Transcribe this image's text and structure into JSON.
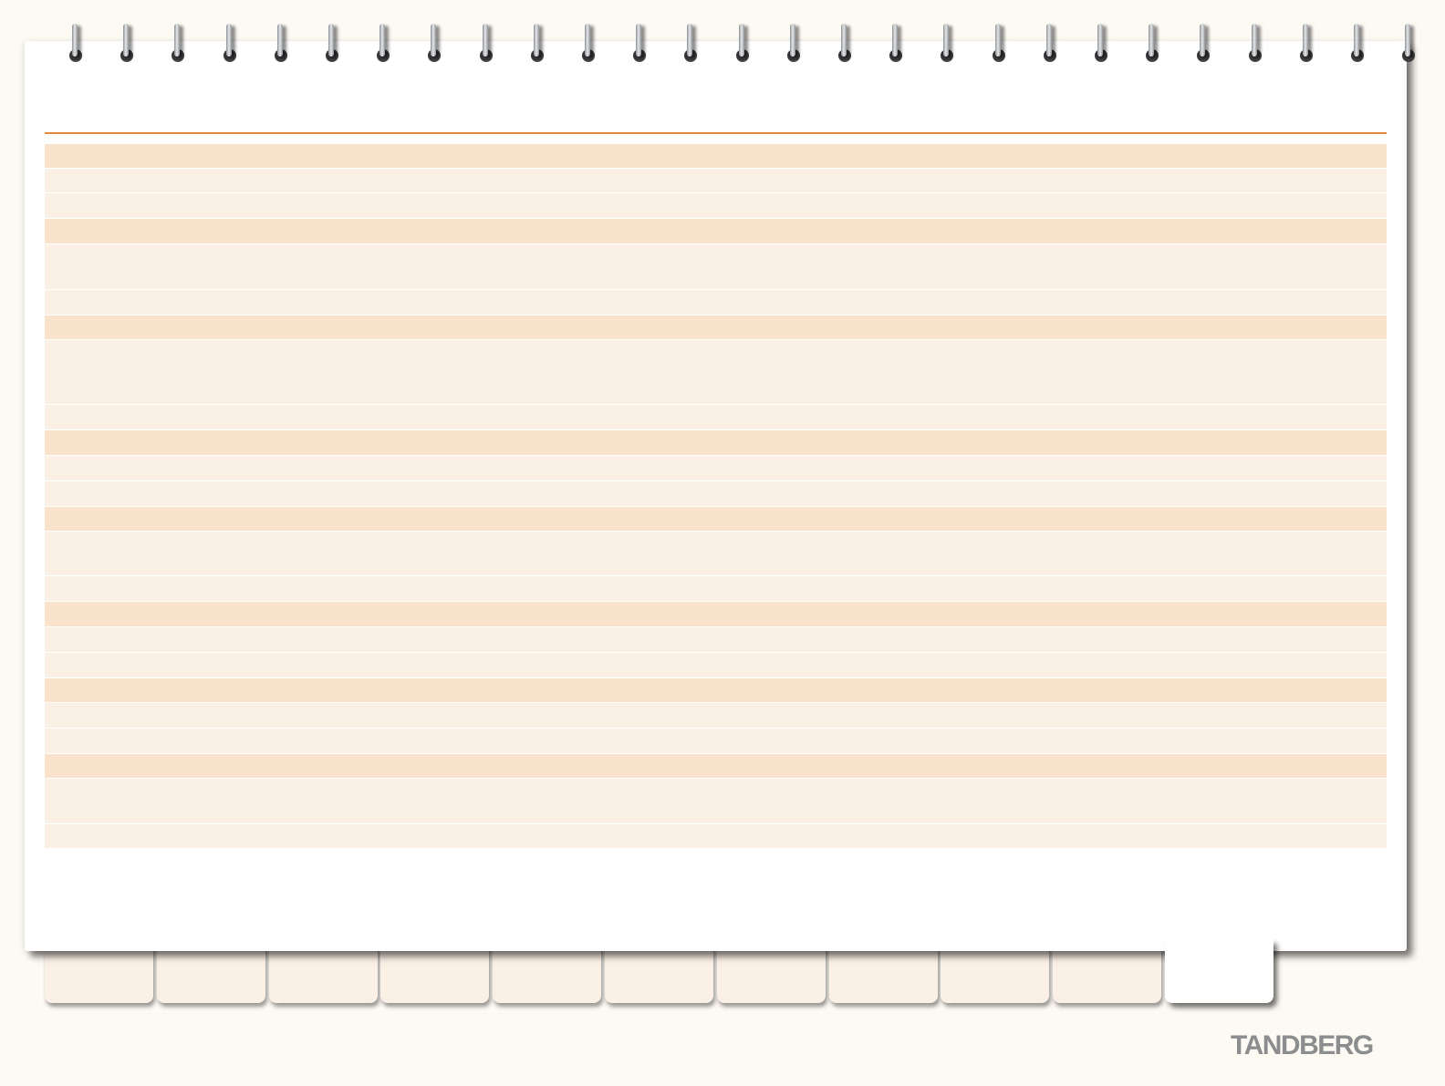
{
  "brand": {
    "logo_text": "TANDBERG"
  },
  "colors": {
    "accent_rule": "#e6883a",
    "header_row": "#fae3cd",
    "body_row": "#fbf0e6",
    "background": "#fdf9f3",
    "logo": "#8c8d8f"
  },
  "binding": {
    "ring_count": 27,
    "icon": "spiral-ring-icon"
  },
  "tabs": {
    "count": 11,
    "active_index": 10
  }
}
